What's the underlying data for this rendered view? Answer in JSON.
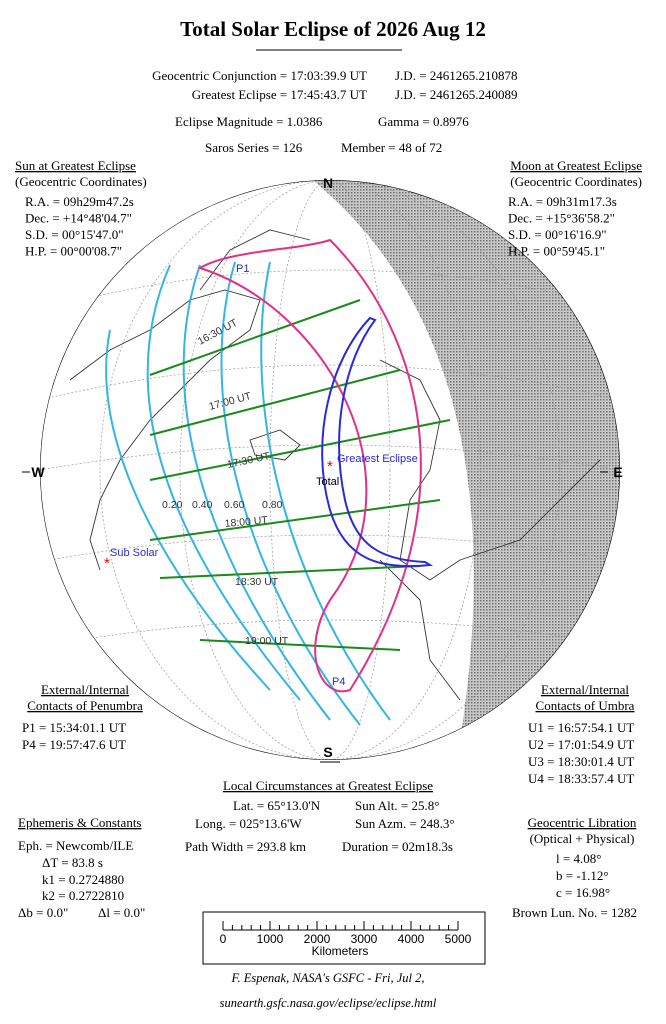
{
  "title": "Total Solar Eclipse of  2026 Aug 12",
  "header": {
    "conjunction": "Geocentric Conjunction = 17:03:39.9 UT",
    "conjunction_jd": "J.D. =  2461265.210878",
    "greatest": "Greatest Eclipse = 17:45:43.7 UT",
    "greatest_jd": "J.D. =  2461265.240089",
    "magnitude": "Eclipse Magnitude = 1.0386",
    "gamma": "Gamma = 0.8976",
    "saros": "Saros Series = 126",
    "member": "Member = 48 of 72"
  },
  "sun": {
    "title": "Sun at Greatest Eclipse",
    "subtitle": "(Geocentric Coordinates)",
    "lines": [
      "R.A. = 09h29m47.2s",
      "Dec. = +14°48'04.7\"",
      "S.D. = 00°15'47.0\"",
      "H.P. = 00°00'08.7\""
    ]
  },
  "moon": {
    "title": "Moon at Greatest Eclipse",
    "subtitle": "(Geocentric Coordinates)",
    "lines": [
      "R.A. = 09h31m17.3s",
      "Dec. = +15°36'58.2\"",
      "S.D. = 00°16'16.9\"",
      "H.P. = 00°59'45.1\""
    ]
  },
  "map": {
    "north": "N",
    "south": "S",
    "east": "E",
    "west": "W",
    "greatest_eclipse": "Greatest Eclipse",
    "total": "Total",
    "sub_solar": "Sub Solar",
    "p1": "P1",
    "p4": "P4",
    "times": [
      "16:30 UT",
      "17:00 UT",
      "17:30 UT",
      "18:00 UT",
      "18:30 UT",
      "19:00 UT"
    ],
    "magnitudes": [
      "0.20",
      "0.40",
      "0.60",
      "0.80"
    ]
  },
  "penumbra": {
    "title1": "External/Internal",
    "title2": "Contacts of Penumbra",
    "lines": [
      "P1 = 15:34:01.1 UT",
      "P4 = 19:57:47.6 UT"
    ]
  },
  "umbra": {
    "title1": "External/Internal",
    "title2": "Contacts of Umbra",
    "lines": [
      "U1 = 16:57:54.1 UT",
      "U2 = 17:01:54.9 UT",
      "U3 = 18:30:01.4 UT",
      "U4 = 18:33:57.4 UT"
    ]
  },
  "local": {
    "title": "Local Circumstances at Greatest Eclipse",
    "lat": "Lat. =  65°13.0'N",
    "sun_alt": "Sun Alt. =  25.8°",
    "long": "Long. = 025°13.6'W",
    "sun_azm": "Sun Azm. = 248.3°",
    "path_width": "Path Width = 293.8 km",
    "duration": "Duration = 02m18.3s"
  },
  "ephemeris": {
    "title": "Ephemeris & Constants",
    "eph": "Eph. = Newcomb/ILE",
    "dt": "ΔT =    83.8 s",
    "k1": "k1 = 0.2724880",
    "k2": "k2 = 0.2722810",
    "db": "Δb =  0.0\"",
    "dl": "Δl =  0.0\""
  },
  "libration": {
    "title": "Geocentric Libration",
    "subtitle": "(Optical + Physical)",
    "l": "l =   4.08°",
    "b": "b =  -1.12°",
    "c": "c =  16.98°",
    "brown": "Brown Lun. No. = 1282"
  },
  "scale": {
    "ticks": [
      "0",
      "1000",
      "2000",
      "3000",
      "4000",
      "5000"
    ],
    "label": "Kilometers"
  },
  "footer": {
    "line1": "F. Espenak, NASA's GSFC - Fri, Jul 2,",
    "line2": "sunearth.gsfc.nasa.gov/eclipse/eclipse.html"
  }
}
